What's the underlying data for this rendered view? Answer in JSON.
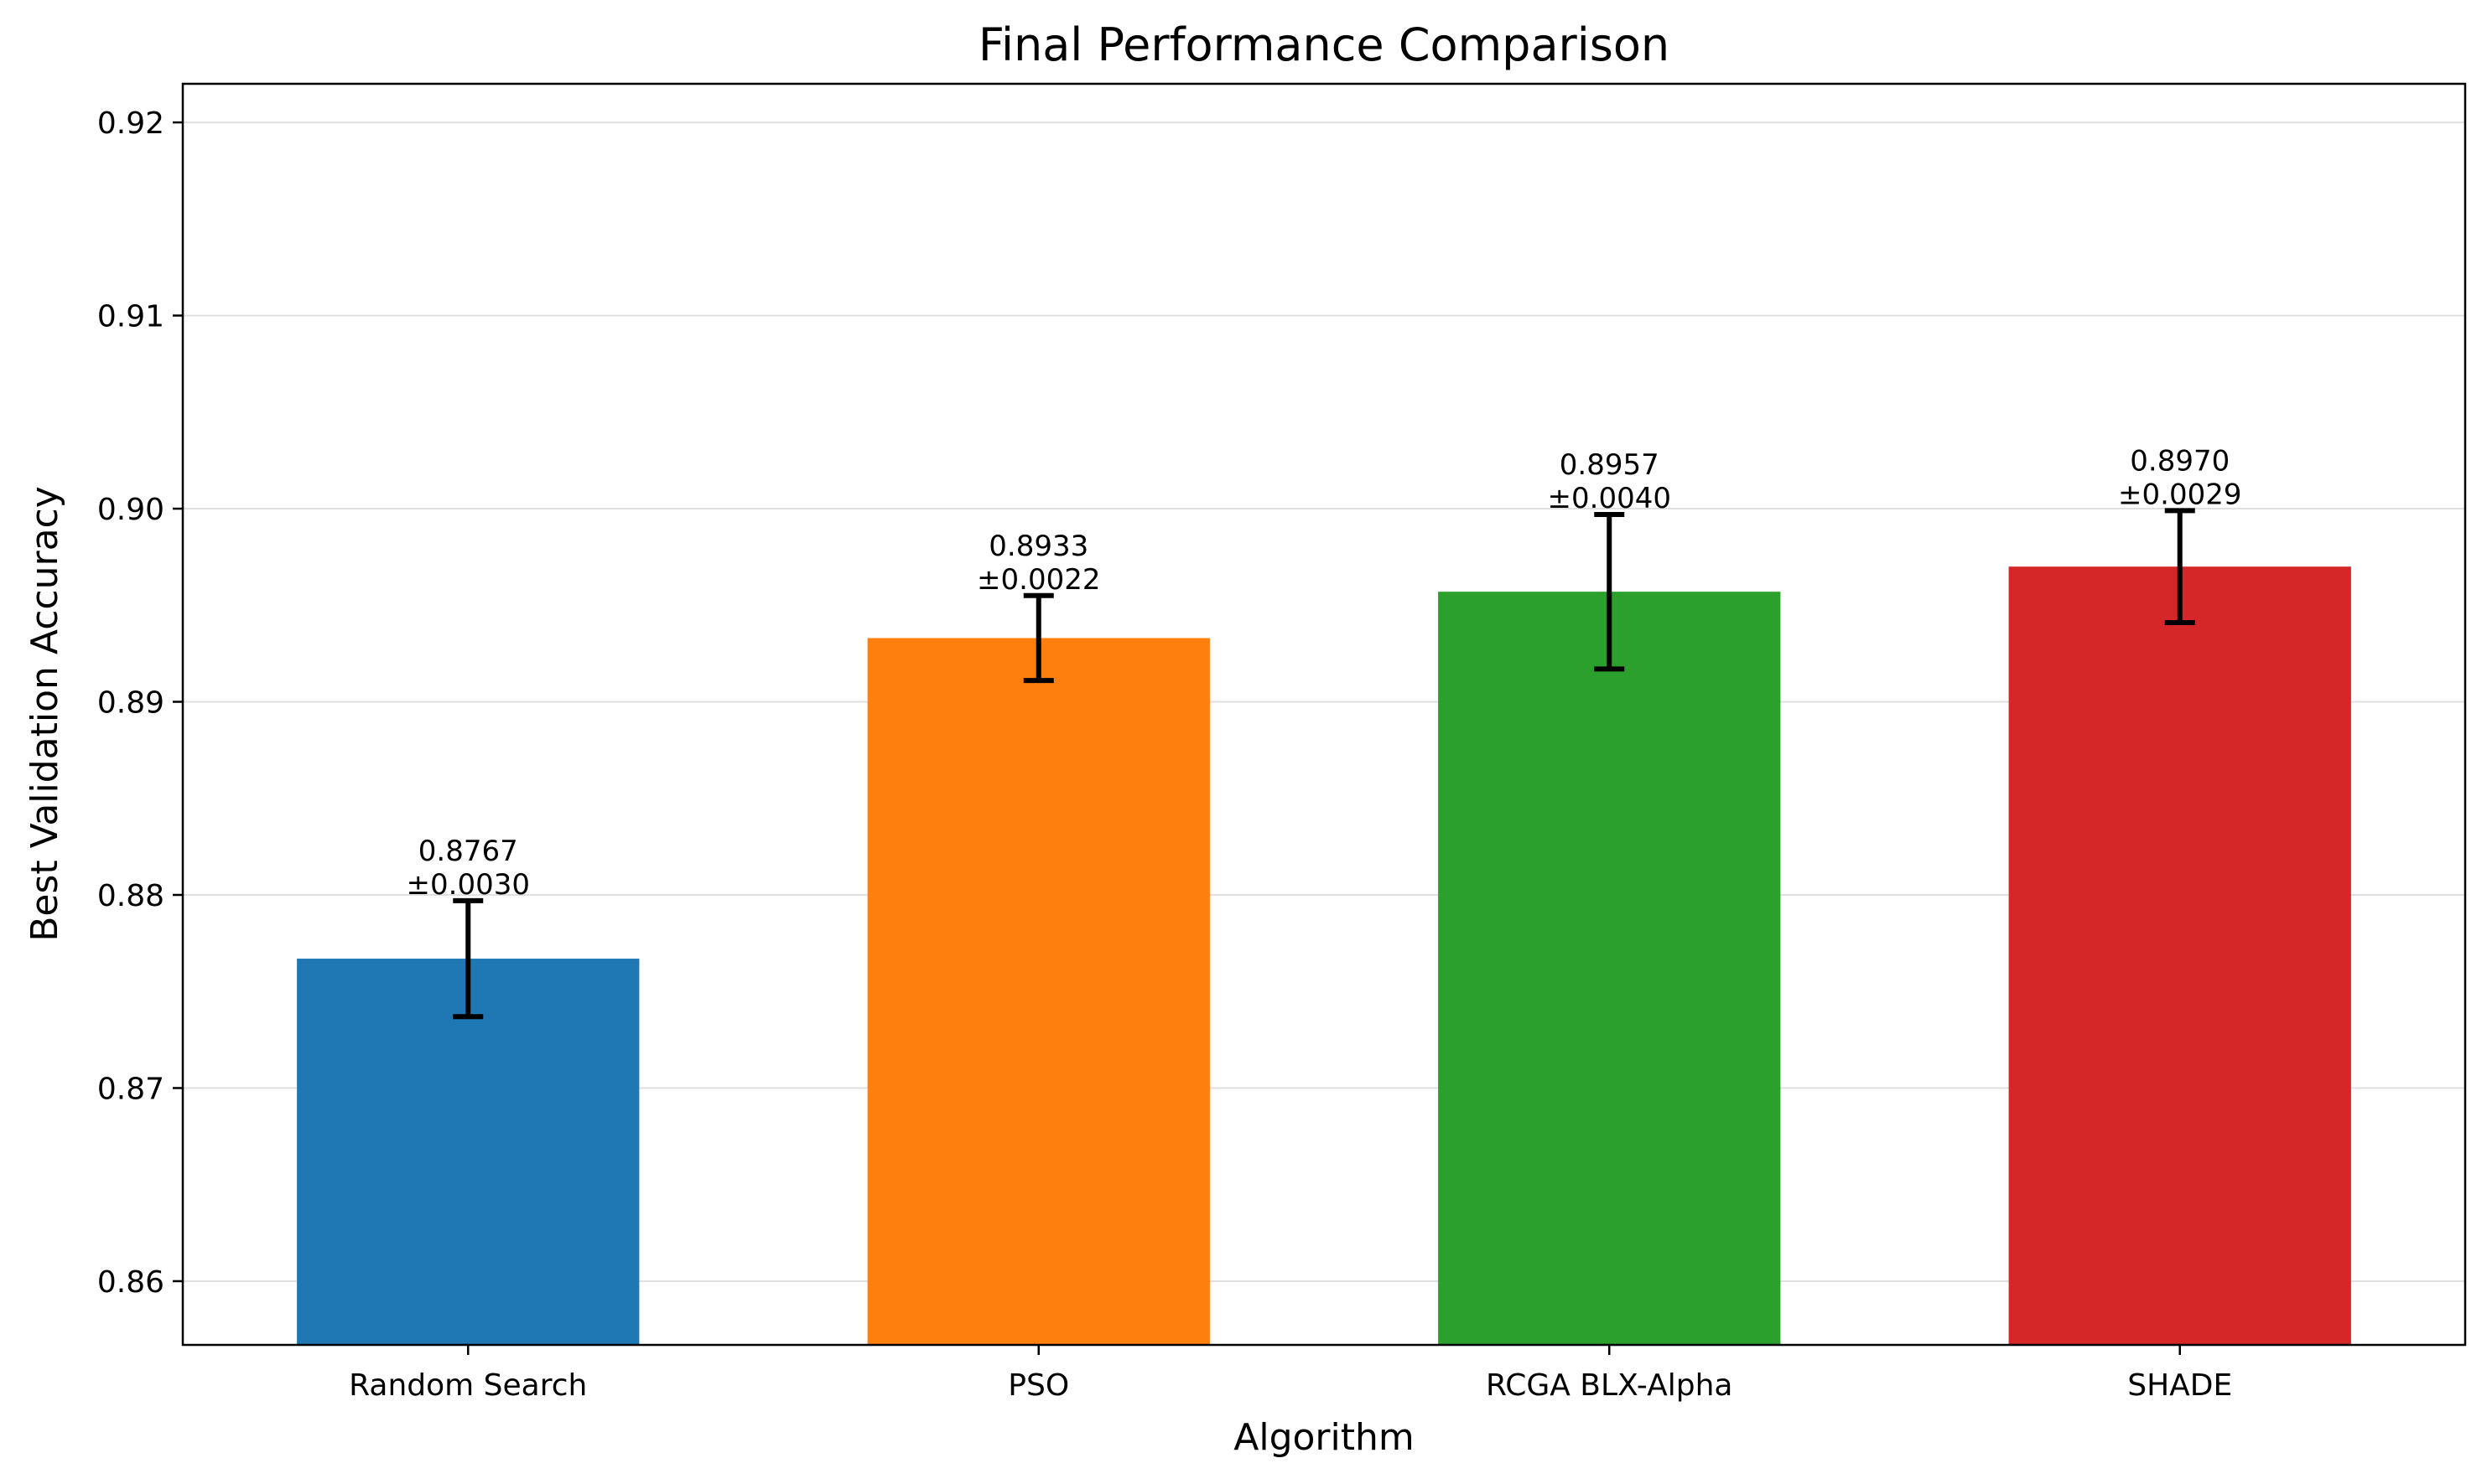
{
  "chart_data": {
    "type": "bar",
    "title": "Final Performance Comparison",
    "xlabel": "Algorithm",
    "ylabel": "Best Validation Accuracy",
    "categories": [
      "Random Search",
      "PSO",
      "RCGA BLX-Alpha",
      "SHADE"
    ],
    "values": [
      0.8767,
      0.8933,
      0.8957,
      0.897
    ],
    "errors": [
      0.003,
      0.0022,
      0.004,
      0.0029
    ],
    "value_labels": [
      "0.8767",
      "0.8933",
      "0.8957",
      "0.8970"
    ],
    "error_labels": [
      "±0.0030",
      "±0.0022",
      "±0.0040",
      "±0.0029"
    ],
    "colors": [
      "#1f77b4",
      "#ff7f0e",
      "#2ca02c",
      "#d62728"
    ],
    "ylim": [
      0.8567,
      0.922
    ],
    "yticks": [
      0.86,
      0.87,
      0.88,
      0.89,
      0.9,
      0.91,
      0.92
    ],
    "ytick_labels": [
      "0.86",
      "0.87",
      "0.88",
      "0.89",
      "0.90",
      "0.91",
      "0.92"
    ],
    "grid": "y",
    "legend": "none"
  }
}
